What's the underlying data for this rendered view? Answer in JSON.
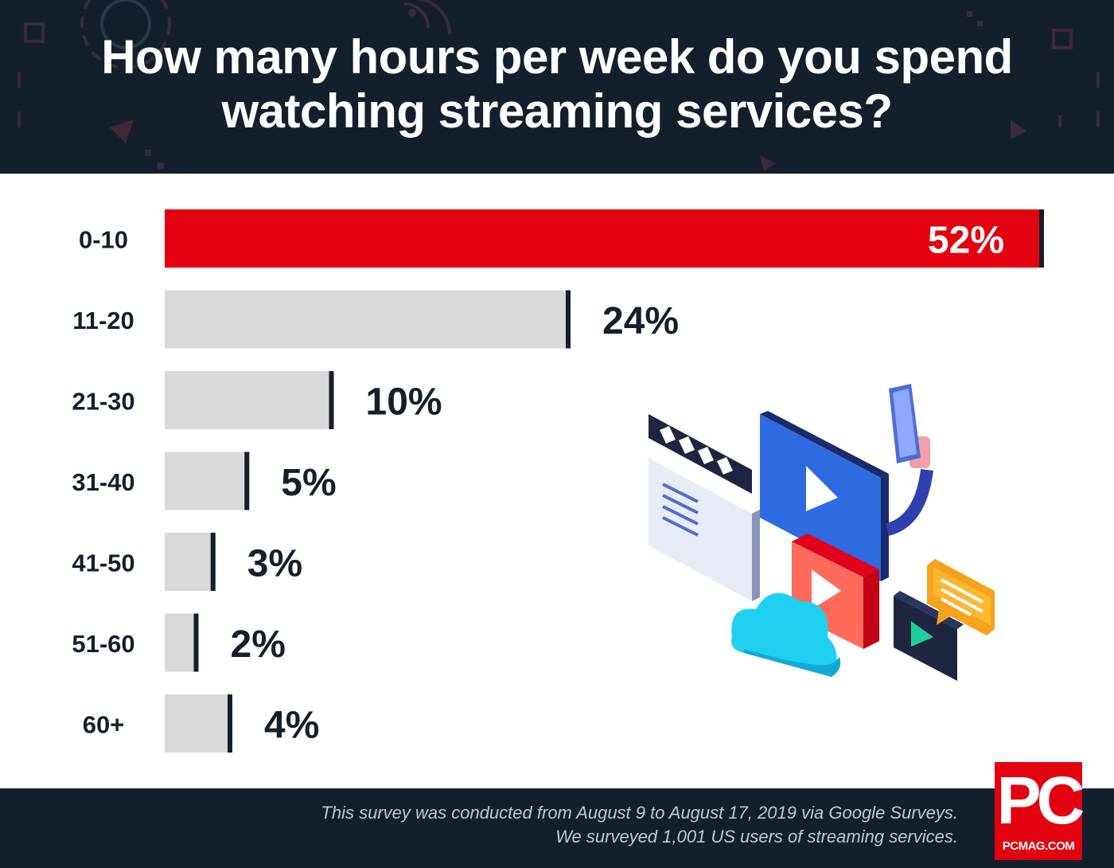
{
  "header": {
    "title": "How many hours per week do you spend\nwatching streaming services?"
  },
  "chart_data": {
    "type": "bar",
    "orientation": "horizontal",
    "title": "How many hours per week do you spend watching streaming services?",
    "categories": [
      "0-10",
      "11-20",
      "21-30",
      "31-40",
      "41-50",
      "51-60",
      "60+"
    ],
    "values": [
      52,
      24,
      10,
      5,
      3,
      2,
      4
    ],
    "value_labels": [
      "52%",
      "24%",
      "10%",
      "5%",
      "3%",
      "2%",
      "4%"
    ],
    "unit": "%",
    "highlight_index": 0,
    "xlim": [
      0,
      52
    ],
    "grid": false,
    "legend": "none"
  },
  "colors": {
    "background_dark": "#13202c",
    "highlight_bar": "#e3000f",
    "bar": "#d9d9d9",
    "bar_end_cap": "#13202c",
    "label_text": "#13202c",
    "highlight_label": "#ffffff"
  },
  "footer": {
    "note_line1": "This survey was conducted from August 9 to August 17, 2019 via Google Surveys.",
    "note_line2": "We surveyed 1,001 US users of streaming services."
  },
  "logo": {
    "mark": "PC",
    "sub": "PCMAG.COM"
  },
  "icons": {
    "illustration": "streaming-media-illustration",
    "header_background": "tech-pattern"
  }
}
